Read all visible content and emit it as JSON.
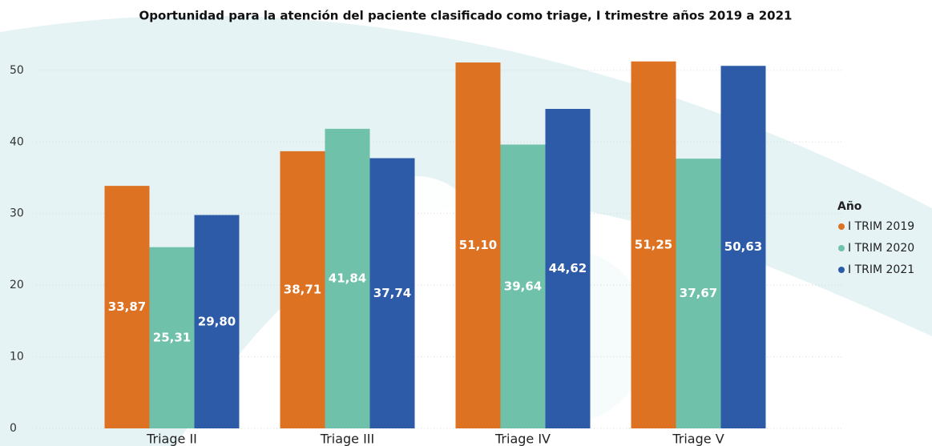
{
  "chart_data": {
    "type": "bar",
    "title": "Oportunidad para la atención del paciente clasificado como triage, I trimestre años 2019 a 2021",
    "categories": [
      "Triage II",
      "Triage III",
      "Triage IV",
      "Triage V"
    ],
    "legend_title": "Año",
    "series": [
      {
        "name": "I TRIM 2019",
        "color": "#dc7222",
        "values": [
          33.87,
          38.71,
          51.1,
          51.25
        ],
        "value_labels": [
          "33,87",
          "38,71",
          "51,10",
          "51,25"
        ]
      },
      {
        "name": "I TRIM 2020",
        "color": "#6fc1a9",
        "values": [
          25.31,
          41.84,
          39.64,
          37.67
        ],
        "value_labels": [
          "25,31",
          "41,84",
          "39,64",
          "37,67"
        ]
      },
      {
        "name": "I TRIM 2021",
        "color": "#2e5ba8",
        "values": [
          29.8,
          37.74,
          44.62,
          50.63
        ],
        "value_labels": [
          "29,80",
          "37,74",
          "44,62",
          "50,63"
        ]
      }
    ],
    "ylim": [
      0,
      52
    ],
    "yticks": [
      0,
      10,
      20,
      30,
      40,
      50
    ],
    "grid": true,
    "legend": "right"
  }
}
